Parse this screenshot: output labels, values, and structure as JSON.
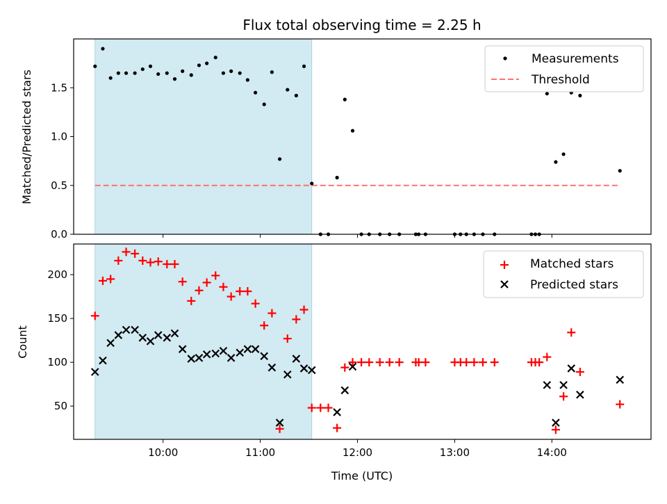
{
  "chart_data": {
    "type": "scatter",
    "title": "Flux total observing time = 2.25 h",
    "xlabel": "Time (UTC)",
    "x_unit": "hours UTC (decimal)",
    "xlim": [
      9.08,
      15.02
    ],
    "x_ticks": [
      {
        "value": 10,
        "label": "10:00"
      },
      {
        "value": 11,
        "label": "11:00"
      },
      {
        "value": 12,
        "label": "12:00"
      },
      {
        "value": 13,
        "label": "13:00"
      },
      {
        "value": 14,
        "label": "14:00"
      }
    ],
    "shaded_span": [
      9.3,
      11.53
    ],
    "shade_color": "#add8e6",
    "top": {
      "ylabel": "Matched/Predicted stars",
      "ylim": [
        0,
        2.0
      ],
      "y_ticks": [
        {
          "value": 0,
          "label": "0.0"
        },
        {
          "value": 0.5,
          "label": "0.5"
        },
        {
          "value": 1.0,
          "label": "1.0"
        },
        {
          "value": 1.5,
          "label": "1.5"
        }
      ],
      "threshold": {
        "value": 0.5,
        "x_range": [
          9.3,
          14.7
        ],
        "color": "#ff7070"
      },
      "legend": {
        "measurements": "Measurements",
        "threshold": "Threshold"
      },
      "measurements": [
        {
          "x": 9.3,
          "y": 1.72
        },
        {
          "x": 9.38,
          "y": 1.9
        },
        {
          "x": 9.46,
          "y": 1.6
        },
        {
          "x": 9.54,
          "y": 1.65
        },
        {
          "x": 9.62,
          "y": 1.65
        },
        {
          "x": 9.71,
          "y": 1.65
        },
        {
          "x": 9.79,
          "y": 1.69
        },
        {
          "x": 9.87,
          "y": 1.72
        },
        {
          "x": 9.95,
          "y": 1.64
        },
        {
          "x": 10.04,
          "y": 1.65
        },
        {
          "x": 10.12,
          "y": 1.59
        },
        {
          "x": 10.2,
          "y": 1.67
        },
        {
          "x": 10.29,
          "y": 1.63
        },
        {
          "x": 10.37,
          "y": 1.73
        },
        {
          "x": 10.45,
          "y": 1.75
        },
        {
          "x": 10.54,
          "y": 1.81
        },
        {
          "x": 10.62,
          "y": 1.65
        },
        {
          "x": 10.7,
          "y": 1.67
        },
        {
          "x": 10.79,
          "y": 1.65
        },
        {
          "x": 10.87,
          "y": 1.58
        },
        {
          "x": 10.95,
          "y": 1.45
        },
        {
          "x": 11.04,
          "y": 1.33
        },
        {
          "x": 11.12,
          "y": 1.66
        },
        {
          "x": 11.2,
          "y": 0.77
        },
        {
          "x": 11.28,
          "y": 1.48
        },
        {
          "x": 11.37,
          "y": 1.42
        },
        {
          "x": 11.45,
          "y": 1.72
        },
        {
          "x": 11.53,
          "y": 0.52
        },
        {
          "x": 11.62,
          "y": 0
        },
        {
          "x": 11.7,
          "y": 0
        },
        {
          "x": 11.79,
          "y": 0.58
        },
        {
          "x": 11.87,
          "y": 1.38
        },
        {
          "x": 11.95,
          "y": 1.06
        },
        {
          "x": 12.04,
          "y": 0
        },
        {
          "x": 12.12,
          "y": 0
        },
        {
          "x": 12.23,
          "y": 0
        },
        {
          "x": 12.33,
          "y": 0
        },
        {
          "x": 12.43,
          "y": 0
        },
        {
          "x": 12.6,
          "y": 0
        },
        {
          "x": 12.63,
          "y": 0
        },
        {
          "x": 12.7,
          "y": 0
        },
        {
          "x": 13.0,
          "y": 0
        },
        {
          "x": 13.06,
          "y": 0
        },
        {
          "x": 13.12,
          "y": 0
        },
        {
          "x": 13.2,
          "y": 0
        },
        {
          "x": 13.29,
          "y": 0
        },
        {
          "x": 13.41,
          "y": 0
        },
        {
          "x": 13.79,
          "y": 0
        },
        {
          "x": 13.83,
          "y": 0
        },
        {
          "x": 13.87,
          "y": 0
        },
        {
          "x": 13.95,
          "y": 1.44
        },
        {
          "x": 14.04,
          "y": 0.74
        },
        {
          "x": 14.12,
          "y": 0.82
        },
        {
          "x": 14.2,
          "y": 1.45
        },
        {
          "x": 14.29,
          "y": 1.42
        },
        {
          "x": 14.7,
          "y": 0.65
        }
      ]
    },
    "bottom": {
      "ylabel": "Count",
      "ylim": [
        12,
        235
      ],
      "y_ticks": [
        {
          "value": 50,
          "label": "50"
        },
        {
          "value": 100,
          "label": "100"
        },
        {
          "value": 150,
          "label": "150"
        },
        {
          "value": 200,
          "label": "200"
        }
      ],
      "legend": {
        "matched": "Matched stars",
        "predicted": "Predicted stars"
      },
      "matched": [
        {
          "x": 9.3,
          "y": 153
        },
        {
          "x": 9.38,
          "y": 193
        },
        {
          "x": 9.46,
          "y": 195
        },
        {
          "x": 9.54,
          "y": 216
        },
        {
          "x": 9.62,
          "y": 226
        },
        {
          "x": 9.71,
          "y": 224
        },
        {
          "x": 9.79,
          "y": 216
        },
        {
          "x": 9.87,
          "y": 214
        },
        {
          "x": 9.95,
          "y": 215
        },
        {
          "x": 10.04,
          "y": 212
        },
        {
          "x": 10.12,
          "y": 212
        },
        {
          "x": 10.2,
          "y": 192
        },
        {
          "x": 10.29,
          "y": 170
        },
        {
          "x": 10.37,
          "y": 182
        },
        {
          "x": 10.45,
          "y": 191
        },
        {
          "x": 10.54,
          "y": 199
        },
        {
          "x": 10.62,
          "y": 186
        },
        {
          "x": 10.7,
          "y": 175
        },
        {
          "x": 10.79,
          "y": 181
        },
        {
          "x": 10.87,
          "y": 181
        },
        {
          "x": 10.95,
          "y": 167
        },
        {
          "x": 11.04,
          "y": 142
        },
        {
          "x": 11.12,
          "y": 156
        },
        {
          "x": 11.2,
          "y": 24
        },
        {
          "x": 11.28,
          "y": 127
        },
        {
          "x": 11.37,
          "y": 149
        },
        {
          "x": 11.45,
          "y": 160
        },
        {
          "x": 11.53,
          "y": 48
        },
        {
          "x": 11.62,
          "y": 48
        },
        {
          "x": 11.7,
          "y": 48
        },
        {
          "x": 11.79,
          "y": 25
        },
        {
          "x": 11.87,
          "y": 94
        },
        {
          "x": 11.95,
          "y": 100
        },
        {
          "x": 12.04,
          "y": 100
        },
        {
          "x": 12.12,
          "y": 100
        },
        {
          "x": 12.23,
          "y": 100
        },
        {
          "x": 12.33,
          "y": 100
        },
        {
          "x": 12.43,
          "y": 100
        },
        {
          "x": 12.6,
          "y": 100
        },
        {
          "x": 12.63,
          "y": 100
        },
        {
          "x": 12.7,
          "y": 100
        },
        {
          "x": 13.0,
          "y": 100
        },
        {
          "x": 13.06,
          "y": 100
        },
        {
          "x": 13.12,
          "y": 100
        },
        {
          "x": 13.2,
          "y": 100
        },
        {
          "x": 13.29,
          "y": 100
        },
        {
          "x": 13.41,
          "y": 100
        },
        {
          "x": 13.79,
          "y": 100
        },
        {
          "x": 13.83,
          "y": 100
        },
        {
          "x": 13.87,
          "y": 100
        },
        {
          "x": 13.95,
          "y": 106
        },
        {
          "x": 14.04,
          "y": 23
        },
        {
          "x": 14.12,
          "y": 61
        },
        {
          "x": 14.2,
          "y": 134
        },
        {
          "x": 14.29,
          "y": 89
        },
        {
          "x": 14.7,
          "y": 52
        }
      ],
      "predicted": [
        {
          "x": 9.3,
          "y": 89
        },
        {
          "x": 9.38,
          "y": 102
        },
        {
          "x": 9.46,
          "y": 122
        },
        {
          "x": 9.54,
          "y": 131
        },
        {
          "x": 9.62,
          "y": 137
        },
        {
          "x": 9.71,
          "y": 137
        },
        {
          "x": 9.79,
          "y": 128
        },
        {
          "x": 9.87,
          "y": 124
        },
        {
          "x": 9.95,
          "y": 131
        },
        {
          "x": 10.04,
          "y": 128
        },
        {
          "x": 10.12,
          "y": 133
        },
        {
          "x": 10.2,
          "y": 115
        },
        {
          "x": 10.29,
          "y": 104
        },
        {
          "x": 10.37,
          "y": 105
        },
        {
          "x": 10.45,
          "y": 109
        },
        {
          "x": 10.54,
          "y": 110
        },
        {
          "x": 10.62,
          "y": 113
        },
        {
          "x": 10.7,
          "y": 105
        },
        {
          "x": 10.79,
          "y": 111
        },
        {
          "x": 10.87,
          "y": 115
        },
        {
          "x": 10.95,
          "y": 115
        },
        {
          "x": 11.04,
          "y": 107
        },
        {
          "x": 11.12,
          "y": 94
        },
        {
          "x": 11.2,
          "y": 31
        },
        {
          "x": 11.28,
          "y": 86
        },
        {
          "x": 11.37,
          "y": 104
        },
        {
          "x": 11.45,
          "y": 93
        },
        {
          "x": 11.53,
          "y": 91
        },
        {
          "x": 11.79,
          "y": 43
        },
        {
          "x": 11.87,
          "y": 68
        },
        {
          "x": 11.95,
          "y": 95
        },
        {
          "x": 13.95,
          "y": 74
        },
        {
          "x": 14.04,
          "y": 31
        },
        {
          "x": 14.12,
          "y": 74
        },
        {
          "x": 14.2,
          "y": 93
        },
        {
          "x": 14.29,
          "y": 63
        },
        {
          "x": 14.7,
          "y": 80
        }
      ]
    }
  }
}
